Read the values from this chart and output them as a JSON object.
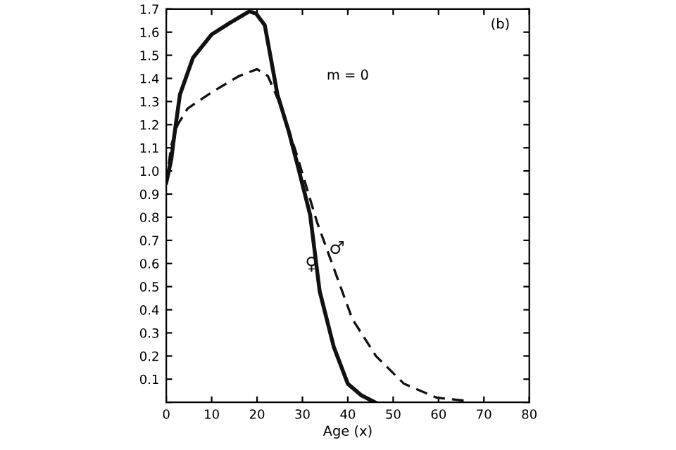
{
  "chart_data": {
    "type": "line",
    "xlabel": "Age (x)",
    "annotations": [
      "m = 0",
      "(b)"
    ],
    "xlim": [
      0,
      80
    ],
    "ylim": [
      0,
      1.7
    ],
    "xticks": [
      0,
      10,
      20,
      30,
      40,
      50,
      60,
      70,
      80
    ],
    "yticks": [
      {
        "value": 0,
        "label": null
      },
      0.1,
      0.2,
      0.3,
      0.4,
      0.5,
      0.6,
      0.7,
      0.8,
      0.9,
      {
        "value": 1.0,
        "label": "1.0"
      },
      1.1,
      1.2,
      1.3,
      1.4,
      1.5,
      1.6,
      1.7
    ],
    "grid": false,
    "legend": false,
    "series": [
      {
        "name": "♀",
        "color": "#111111",
        "line_style": "solid",
        "x": [
          0,
          1.1,
          1.6,
          3,
          5.9,
          10,
          14,
          18.3,
          19.8,
          21.7,
          24.5,
          27,
          29,
          31.7,
          33.8,
          36.9,
          40,
          43,
          46
        ],
        "values": [
          0.95,
          1.05,
          1.13,
          1.33,
          1.49,
          1.59,
          1.64,
          1.69,
          1.68,
          1.63,
          1.33,
          1.17,
          1.02,
          0.81,
          0.48,
          0.24,
          0.08,
          0.03,
          0
        ]
      },
      {
        "name": "♂",
        "color": "#111111",
        "line_style": "dashed",
        "x": [
          0,
          1.1,
          2.5,
          4.7,
          10,
          16,
          20,
          22.4,
          25.5,
          28.6,
          33.2,
          36.9,
          41,
          46.2,
          52.4,
          59.6,
          66.8
        ],
        "values": [
          0.95,
          1.11,
          1.2,
          1.27,
          1.34,
          1.41,
          1.44,
          1.41,
          1.27,
          1.08,
          0.78,
          0.58,
          0.36,
          0.2,
          0.08,
          0.02,
          0.005
        ]
      }
    ]
  }
}
